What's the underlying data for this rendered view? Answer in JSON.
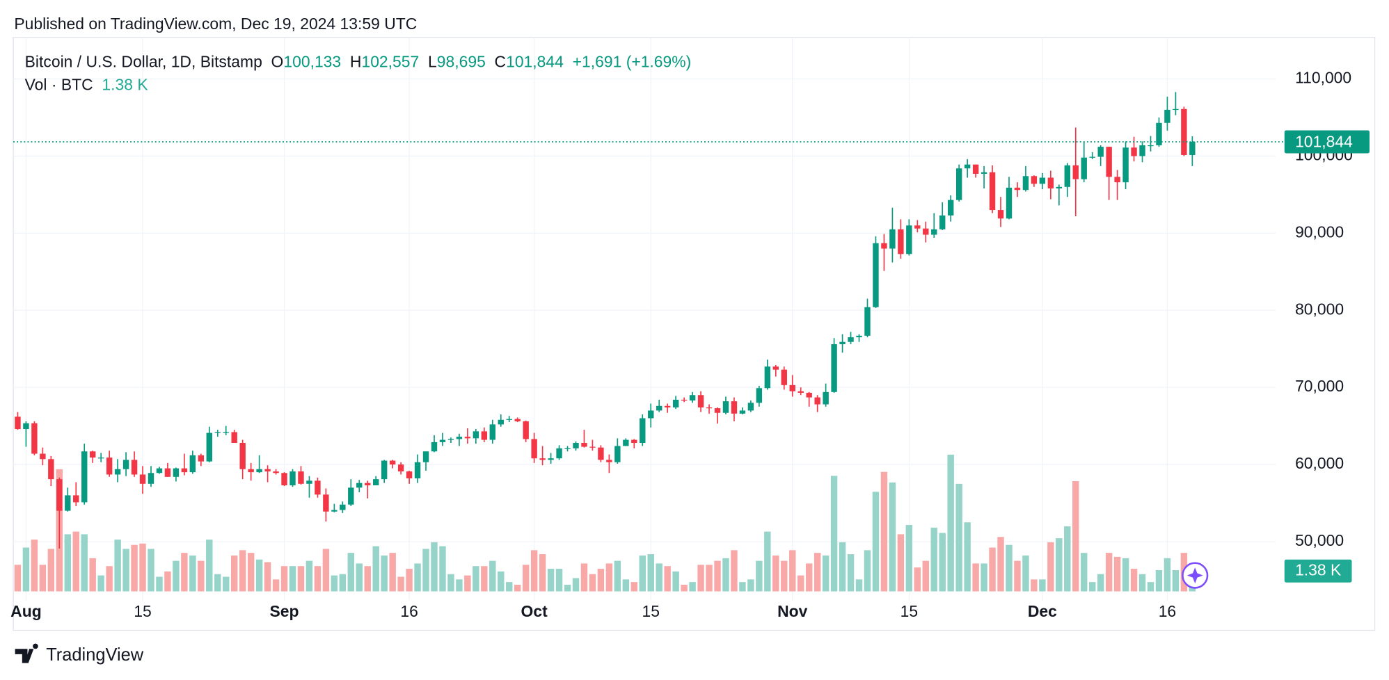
{
  "header": {
    "published": "Published on TradingView.com, Dec 19, 2024 13:59 UTC",
    "symbol": "Bitcoin / U.S. Dollar, 1D, Bitstamp",
    "o_label": "O",
    "open": "100,133",
    "h_label": "H",
    "high": "102,557",
    "l_label": "L",
    "low": "98,695",
    "c_label": "C",
    "close": "101,844",
    "change": "+1,691 (+1.69%)",
    "vol_label": "Vol · BTC",
    "vol": "1.38 K"
  },
  "footer": {
    "brand": "TradingView"
  },
  "chart_data": {
    "type": "candlestick",
    "up_color": "#089981",
    "down_color": "#f23645",
    "volume_up_color": "#96d3c9",
    "volume_down_color": "#f7a8a7",
    "grid": true,
    "ylim": [
      42400,
      115400
    ],
    "yticks": [
      {
        "value": 50000,
        "label": "50,000"
      },
      {
        "value": 60000,
        "label": "60,000"
      },
      {
        "value": 70000,
        "label": "70,000"
      },
      {
        "value": 80000,
        "label": "80,000"
      },
      {
        "value": 90000,
        "label": "90,000"
      },
      {
        "value": 100000,
        "label": "100,000"
      },
      {
        "value": 110000,
        "label": "110,000"
      }
    ],
    "xlim": [
      "2024-07-31",
      "2024-12-29"
    ],
    "xticks": [
      {
        "value": "2024-08-01",
        "label": "Aug"
      },
      {
        "value": "2024-08-15",
        "label": "15"
      },
      {
        "value": "2024-09-01",
        "label": "Sep"
      },
      {
        "value": "2024-09-16",
        "label": "16"
      },
      {
        "value": "2024-10-01",
        "label": "Oct"
      },
      {
        "value": "2024-10-15",
        "label": "15"
      },
      {
        "value": "2024-11-01",
        "label": "Nov"
      },
      {
        "value": "2024-11-15",
        "label": "15"
      },
      {
        "value": "2024-12-01",
        "label": "Dec"
      },
      {
        "value": "2024-12-16",
        "label": "16"
      }
    ],
    "volume_ylim": [
      0,
      30000
    ],
    "last_price_label": "101,844",
    "volume_label": "1.38 K",
    "x": [
      "2024-07-31",
      "2024-08-01",
      "2024-08-02",
      "2024-08-03",
      "2024-08-04",
      "2024-08-05",
      "2024-08-06",
      "2024-08-07",
      "2024-08-08",
      "2024-08-09",
      "2024-08-10",
      "2024-08-11",
      "2024-08-12",
      "2024-08-13",
      "2024-08-14",
      "2024-08-15",
      "2024-08-16",
      "2024-08-17",
      "2024-08-18",
      "2024-08-19",
      "2024-08-20",
      "2024-08-21",
      "2024-08-22",
      "2024-08-23",
      "2024-08-24",
      "2024-08-25",
      "2024-08-26",
      "2024-08-27",
      "2024-08-28",
      "2024-08-29",
      "2024-08-30",
      "2024-08-31",
      "2024-09-01",
      "2024-09-02",
      "2024-09-03",
      "2024-09-04",
      "2024-09-05",
      "2024-09-06",
      "2024-09-07",
      "2024-09-08",
      "2024-09-09",
      "2024-09-10",
      "2024-09-11",
      "2024-09-12",
      "2024-09-13",
      "2024-09-14",
      "2024-09-15",
      "2024-09-16",
      "2024-09-17",
      "2024-09-18",
      "2024-09-19",
      "2024-09-20",
      "2024-09-21",
      "2024-09-22",
      "2024-09-23",
      "2024-09-24",
      "2024-09-25",
      "2024-09-26",
      "2024-09-27",
      "2024-09-28",
      "2024-09-29",
      "2024-09-30",
      "2024-10-01",
      "2024-10-02",
      "2024-10-03",
      "2024-10-04",
      "2024-10-05",
      "2024-10-06",
      "2024-10-07",
      "2024-10-08",
      "2024-10-09",
      "2024-10-10",
      "2024-10-11",
      "2024-10-12",
      "2024-10-13",
      "2024-10-14",
      "2024-10-15",
      "2024-10-16",
      "2024-10-17",
      "2024-10-18",
      "2024-10-19",
      "2024-10-20",
      "2024-10-21",
      "2024-10-22",
      "2024-10-23",
      "2024-10-24",
      "2024-10-25",
      "2024-10-26",
      "2024-10-27",
      "2024-10-28",
      "2024-10-29",
      "2024-10-30",
      "2024-10-31",
      "2024-11-01",
      "2024-11-02",
      "2024-11-03",
      "2024-11-04",
      "2024-11-05",
      "2024-11-06",
      "2024-11-07",
      "2024-11-08",
      "2024-11-09",
      "2024-11-10",
      "2024-11-11",
      "2024-11-12",
      "2024-11-13",
      "2024-11-14",
      "2024-11-15",
      "2024-11-16",
      "2024-11-17",
      "2024-11-18",
      "2024-11-19",
      "2024-11-20",
      "2024-11-21",
      "2024-11-22",
      "2024-11-23",
      "2024-11-24",
      "2024-11-25",
      "2024-11-26",
      "2024-11-27",
      "2024-11-28",
      "2024-11-29",
      "2024-11-30",
      "2024-12-01",
      "2024-12-02",
      "2024-12-03",
      "2024-12-04",
      "2024-12-05",
      "2024-12-06",
      "2024-12-07",
      "2024-12-08",
      "2024-12-09",
      "2024-12-10",
      "2024-12-11",
      "2024-12-12",
      "2024-12-13",
      "2024-12-14",
      "2024-12-15",
      "2024-12-16",
      "2024-12-17",
      "2024-12-18",
      "2024-12-19"
    ],
    "open": [
      66200,
      64600,
      65350,
      61400,
      60700,
      58100,
      54000,
      56000,
      55100,
      61700,
      60900,
      60900,
      58700,
      59400,
      60600,
      58700,
      57500,
      58900,
      59500,
      58400,
      59500,
      59000,
      61200,
      60400,
      64100,
      64200,
      64200,
      62800,
      59400,
      59000,
      59400,
      59100,
      58900,
      57300,
      59100,
      57500,
      57900,
      56100,
      53900,
      54100,
      54800,
      57000,
      57600,
      57300,
      58100,
      60500,
      60000,
      59100,
      58200,
      60300,
      61700,
      62900,
      63200,
      63300,
      63600,
      63400,
      64300,
      63200,
      65200,
      65800,
      65900,
      65600,
      63300,
      60800,
      60600,
      60800,
      62100,
      62100,
      62800,
      62300,
      62200,
      60600,
      60300,
      62400,
      63200,
      62800,
      66000,
      67000,
      67600,
      67400,
      68400,
      68300,
      69000,
      67400,
      67300,
      66700,
      68200,
      66600,
      67000,
      68000,
      69900,
      72700,
      72300,
      70300,
      69500,
      69300,
      68700,
      67800,
      69400,
      75600,
      75900,
      76500,
      76700,
      80400,
      88700,
      88000,
      90500,
      87300,
      91000,
      90600,
      89800,
      90500,
      92300,
      94300,
      98400,
      98900,
      97700,
      97900,
      93000,
      91900,
      95900,
      95600,
      97400,
      96400,
      97200,
      95800,
      96000,
      98800,
      97000,
      99800,
      99900,
      101200,
      97300,
      96600,
      101100,
      100000,
      101400,
      101400,
      104300,
      106000,
      106100,
      100133
    ],
    "high": [
      66800,
      65600,
      65600,
      62200,
      61100,
      58300,
      57000,
      57700,
      62700,
      61800,
      61500,
      61800,
      60700,
      61600,
      61700,
      59800,
      59800,
      59700,
      60200,
      59600,
      61400,
      61800,
      61400,
      64900,
      64500,
      65000,
      64500,
      63200,
      60200,
      61200,
      59900,
      59400,
      59000,
      59400,
      59800,
      58500,
      58300,
      56900,
      54900,
      55200,
      58100,
      58000,
      57900,
      58500,
      60600,
      60600,
      60300,
      59200,
      61300,
      61700,
      63800,
      64100,
      63500,
      64000,
      64700,
      64600,
      64800,
      65800,
      66500,
      66300,
      66100,
      65700,
      64100,
      62400,
      61500,
      62500,
      62400,
      63000,
      64500,
      63200,
      62500,
      61300,
      63400,
      63400,
      63300,
      66500,
      67900,
      68400,
      67900,
      68900,
      68700,
      69400,
      69500,
      67800,
      67400,
      68800,
      68700,
      67400,
      68300,
      70200,
      73600,
      72900,
      72700,
      71600,
      70000,
      69400,
      69000,
      70500,
      76400,
      76900,
      77200,
      76900,
      81500,
      89600,
      89900,
      93300,
      91800,
      91800,
      91700,
      91500,
      92600,
      94000,
      94900,
      98900,
      99600,
      98900,
      98700,
      98800,
      94700,
      97300,
      96600,
      98700,
      97500,
      97800,
      98100,
      96300,
      99100,
      103700,
      101900,
      100500,
      101400,
      101200,
      98200,
      101900,
      102500,
      101900,
      102600,
      105000,
      107700,
      108300,
      106400,
      102557
    ],
    "low": [
      64500,
      62300,
      61200,
      59900,
      57200,
      49100,
      53900,
      54600,
      54800,
      60200,
      60300,
      58400,
      57700,
      58500,
      58400,
      56200,
      57100,
      58800,
      58400,
      57800,
      58600,
      58800,
      59800,
      60300,
      63600,
      63800,
      62800,
      58100,
      57900,
      58900,
      57700,
      58700,
      57200,
      57100,
      57400,
      55700,
      55700,
      52600,
      53800,
      53700,
      54600,
      56400,
      55600,
      57300,
      57600,
      59500,
      58700,
      57500,
      57600,
      59200,
      61600,
      62400,
      62800,
      62400,
      62700,
      62700,
      62900,
      62700,
      64900,
      65500,
      65500,
      62900,
      60200,
      59900,
      60100,
      60600,
      61700,
      61800,
      62200,
      61800,
      60300,
      58900,
      60100,
      62400,
      62100,
      62400,
      64800,
      66800,
      66700,
      67200,
      68100,
      68000,
      66800,
      66600,
      65300,
      66500,
      65600,
      66500,
      66800,
      67500,
      69700,
      71400,
      69700,
      68800,
      69000,
      67500,
      66800,
      67500,
      69300,
      74500,
      75600,
      75900,
      76500,
      80300,
      85100,
      86200,
      86700,
      87100,
      90100,
      88800,
      89400,
      90400,
      91500,
      94100,
      97200,
      97200,
      95800,
      92600,
      90800,
      91800,
      94700,
      95400,
      96000,
      95700,
      94400,
      93600,
      94700,
      92200,
      96600,
      99600,
      98700,
      94300,
      94300,
      95700,
      99300,
      99200,
      100600,
      101200,
      103300,
      105300,
      100000,
      98695
    ],
    "close": [
      64600,
      65350,
      61400,
      60700,
      58100,
      54000,
      56000,
      55100,
      61700,
      60900,
      60900,
      58700,
      59400,
      60600,
      58700,
      57500,
      58900,
      59500,
      58400,
      59500,
      59000,
      61200,
      60400,
      64100,
      64200,
      64200,
      62800,
      59400,
      59000,
      59400,
      59100,
      58900,
      57300,
      59100,
      57500,
      57900,
      56100,
      53900,
      54100,
      54800,
      57000,
      57600,
      57300,
      58100,
      60500,
      60000,
      59100,
      58200,
      60300,
      61700,
      62900,
      63200,
      63300,
      63600,
      63400,
      64300,
      63200,
      65200,
      65800,
      65900,
      65600,
      63300,
      60800,
      60600,
      60800,
      62100,
      62100,
      62800,
      62300,
      62200,
      60600,
      60300,
      62400,
      63200,
      62800,
      66000,
      67000,
      67600,
      67400,
      68400,
      68300,
      69000,
      67400,
      67300,
      66700,
      68200,
      66600,
      67000,
      68000,
      69900,
      72700,
      72300,
      70300,
      69500,
      69300,
      68700,
      67800,
      69400,
      75600,
      75900,
      76500,
      76700,
      80400,
      88700,
      88000,
      90500,
      87300,
      91000,
      90600,
      89800,
      90500,
      92300,
      94300,
      98400,
      98900,
      97700,
      97900,
      93000,
      91900,
      95900,
      95600,
      97400,
      96400,
      97200,
      95800,
      96000,
      98800,
      97000,
      99800,
      99900,
      101200,
      97300,
      96600,
      101100,
      100000,
      101400,
      101400,
      104300,
      106000,
      106100,
      100133,
      101844
    ],
    "volume": [
      2000,
      3300,
      3900,
      2000,
      3200,
      9200,
      4300,
      4500,
      4300,
      2500,
      1200,
      1900,
      3900,
      3200,
      3500,
      3600,
      3200,
      1100,
      1500,
      2300,
      2900,
      2700,
      2300,
      3900,
      1300,
      1100,
      2700,
      3100,
      2900,
      2400,
      2200,
      900,
      1900,
      1900,
      1900,
      2300,
      1900,
      3200,
      1200,
      1300,
      2900,
      2100,
      1900,
      3400,
      2700,
      2900,
      1100,
      1700,
      2100,
      3200,
      3700,
      3400,
      1300,
      900,
      1200,
      1900,
      1900,
      2300,
      1500,
      700,
      500,
      2000,
      3100,
      2800,
      1700,
      1700,
      500,
      1000,
      2100,
      1300,
      1700,
      2100,
      2300,
      900,
      700,
      2700,
      2800,
      2100,
      1900,
      1500,
      500,
      700,
      2000,
      2000,
      2300,
      2500,
      3100,
      700,
      900,
      2300,
      4500,
      2700,
      2300,
      3100,
      1200,
      2100,
      2900,
      2700,
      8700,
      3700,
      2800,
      900,
      3100,
      7500,
      9000,
      8200,
      4300,
      5000,
      1800,
      2300,
      4800,
      4400,
      10300,
      8100,
      5200,
      2100,
      2100,
      3300,
      4100,
      3500,
      2300,
      2700,
      900,
      900,
      3700,
      4000,
      4900,
      8300,
      2900,
      700,
      1300,
      2900,
      2600,
      2500,
      1700,
      1300,
      700,
      1600,
      2500,
      1600,
      2900,
      1380
    ]
  }
}
